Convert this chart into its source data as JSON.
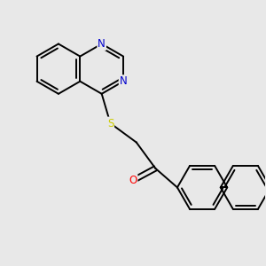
{
  "background_color": "#e8e8e8",
  "bond_color": "#000000",
  "N_color": "#0000cc",
  "S_color": "#cccc00",
  "O_color": "#ff0000",
  "line_width": 1.4,
  "dbo": 0.055,
  "figsize": [
    3.0,
    3.0
  ],
  "dpi": 100,
  "xlim": [
    0.2,
    7.8
  ],
  "ylim": [
    1.5,
    9.0
  ]
}
